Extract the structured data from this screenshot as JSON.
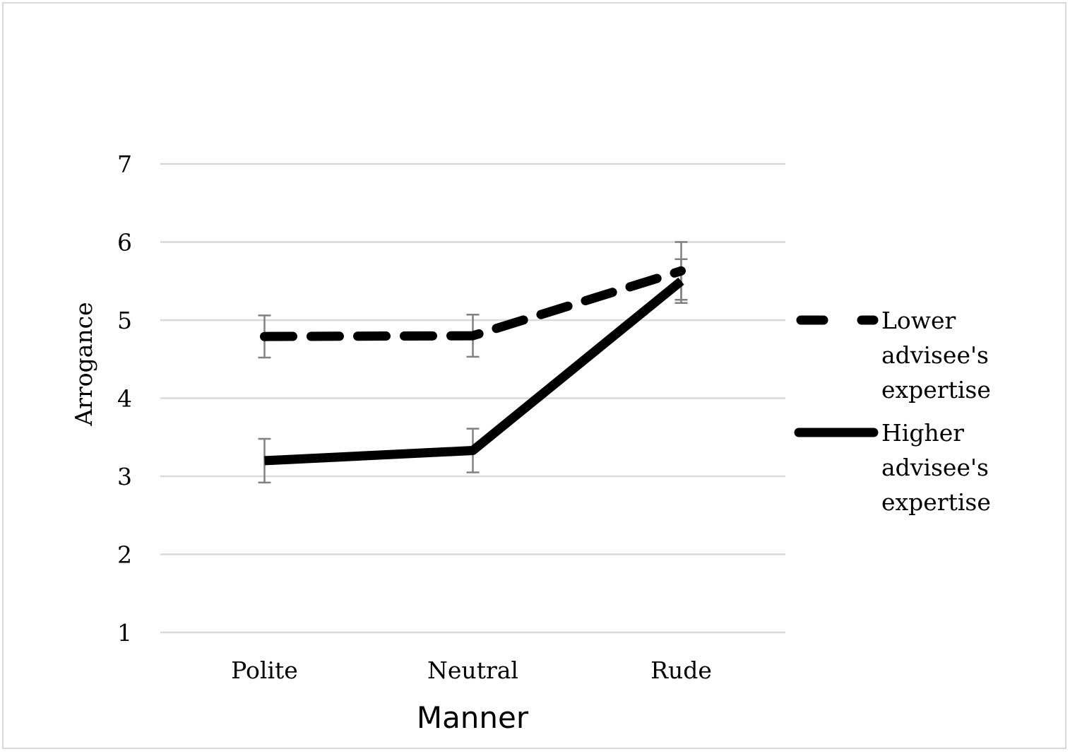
{
  "chart_data": {
    "type": "line",
    "title": "",
    "xlabel": "Manner",
    "ylabel": "Arrogance",
    "categories": [
      "Polite",
      "Neutral",
      "Rude"
    ],
    "ylim": [
      1,
      7
    ],
    "yticks": [
      "1",
      "2",
      "3",
      "4",
      "5",
      "6",
      "7"
    ],
    "grid": true,
    "legend_position": "right",
    "series": [
      {
        "name": "Lower advisee's expertise",
        "legend_lines": [
          "Lower",
          "advisee's",
          "expertise"
        ],
        "style": "dashed",
        "color": "#000000",
        "values": [
          4.79,
          4.8,
          5.63
        ],
        "error": [
          0.27,
          0.27,
          0.37
        ]
      },
      {
        "name": "Higher advisee's expertise",
        "legend_lines": [
          "Higher",
          "advisee's",
          "expertise"
        ],
        "style": "solid",
        "color": "#000000",
        "values": [
          3.2,
          3.33,
          5.5
        ],
        "error": [
          0.28,
          0.28,
          0.28
        ]
      }
    ],
    "gridline_color": "#d9d9d9",
    "errorbar_color": "#808080"
  }
}
